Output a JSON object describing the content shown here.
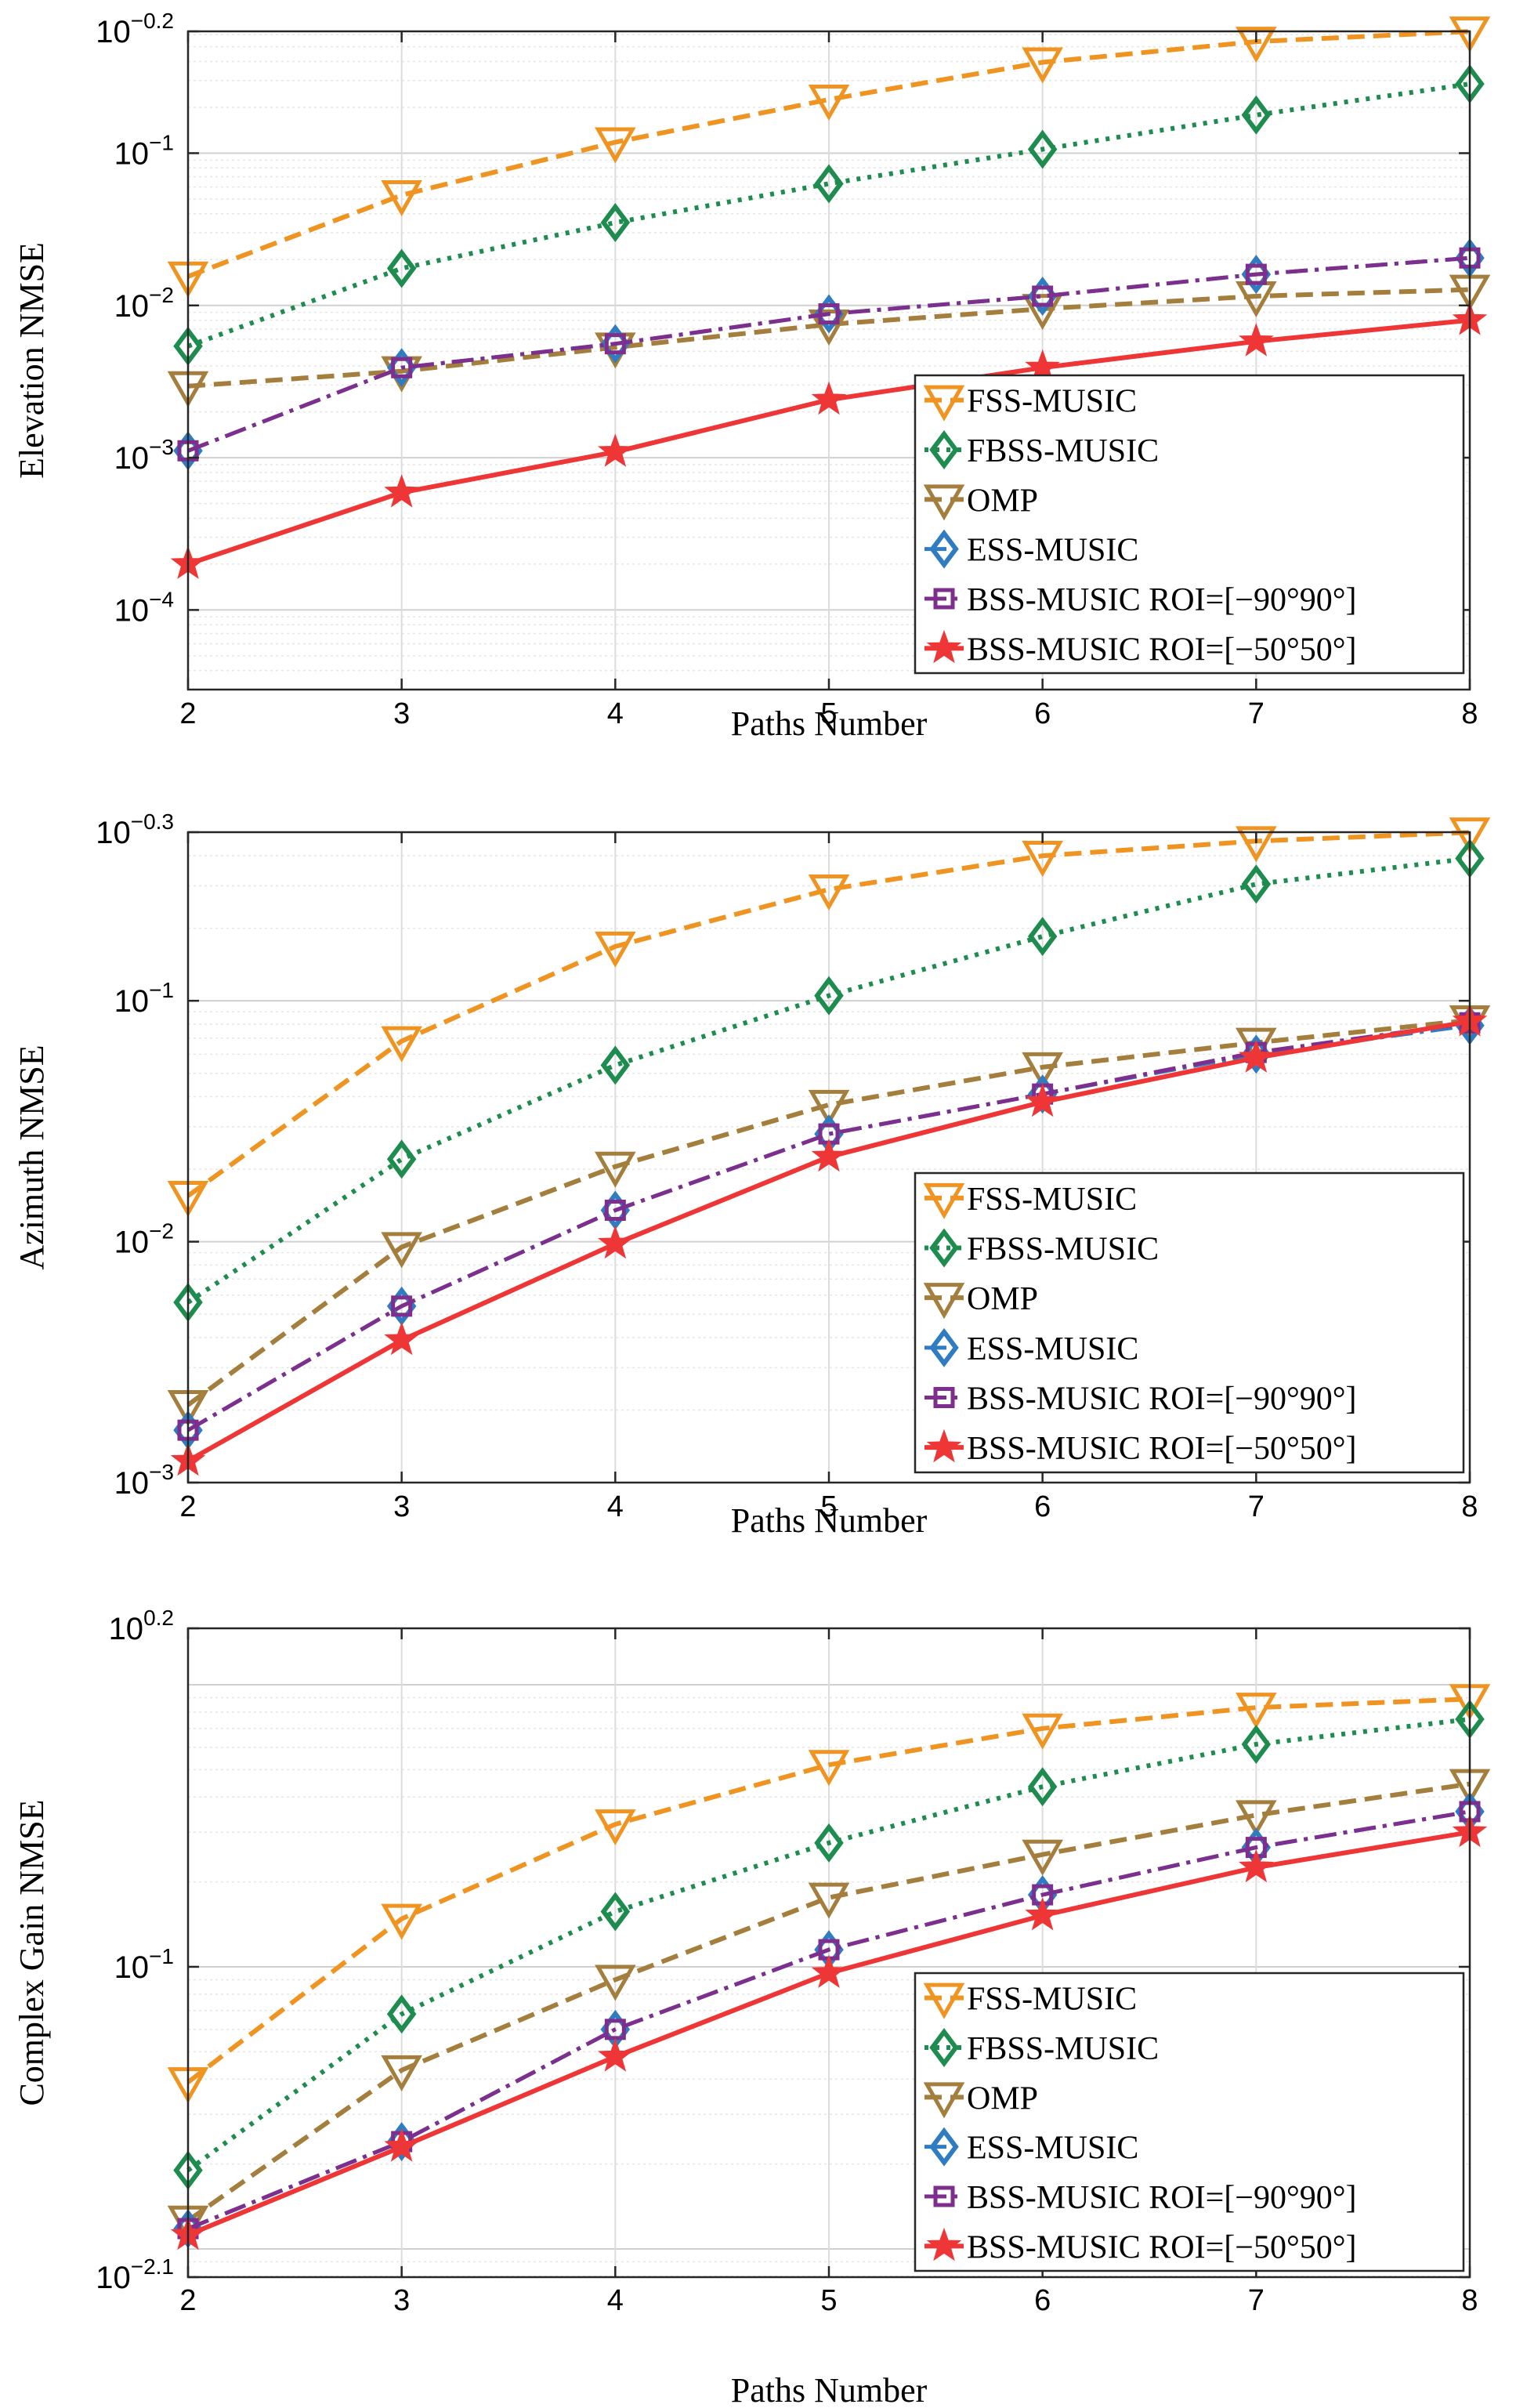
{
  "chart_data": [
    {
      "type": "line",
      "title": "",
      "xlabel": "Paths Number",
      "ylabel": "Elevation NMSE",
      "yscale": "log",
      "xlim": [
        2,
        8
      ],
      "ylim": [
        3e-05,
        0.631
      ],
      "x_ticks": [
        2,
        3,
        4,
        5,
        6,
        7,
        8
      ],
      "y_ticks": [
        {
          "value": 0.0001,
          "base": "10",
          "exp": "−4"
        },
        {
          "value": 0.001,
          "base": "10",
          "exp": "−3"
        },
        {
          "value": 0.01,
          "base": "10",
          "exp": "−2"
        },
        {
          "value": 0.1,
          "base": "10",
          "exp": "−1"
        },
        {
          "value": 0.631,
          "base": "10",
          "exp": "−0.2"
        }
      ],
      "grid": true,
      "legend_position": "bottom-right",
      "x": [
        2,
        3,
        4,
        5,
        6,
        7,
        8
      ],
      "series": [
        {
          "name": "FSS-MUSIC",
          "color": "#EF9420",
          "values": [
            0.0155,
            0.053,
            0.118,
            0.225,
            0.395,
            0.54,
            0.63
          ]
        },
        {
          "name": "FBSS-MUSIC",
          "color": "#1E8C4E",
          "values": [
            0.0054,
            0.0175,
            0.035,
            0.063,
            0.106,
            0.178,
            0.285
          ]
        },
        {
          "name": "OMP",
          "color": "#A47E3C",
          "values": [
            0.00295,
            0.0037,
            0.0053,
            0.0075,
            0.0095,
            0.0115,
            0.0127
          ]
        },
        {
          "name": "ESS-MUSIC",
          "color": "#2F7CC2",
          "values": [
            0.00111,
            0.0039,
            0.0056,
            0.0088,
            0.0115,
            0.016,
            0.0205
          ]
        },
        {
          "name": "BSS-MUSIC ROI=[−90°90°]",
          "color": "#7E2F8E",
          "values": [
            0.00111,
            0.0039,
            0.0056,
            0.0088,
            0.0115,
            0.016,
            0.0205
          ]
        },
        {
          "name": "BSS-MUSIC ROI=[−50°50°]",
          "color": "#EE3636",
          "values": [
            0.0002,
            0.00059,
            0.00109,
            0.0024,
            0.0039,
            0.0058,
            0.008
          ]
        }
      ]
    },
    {
      "type": "line",
      "title": "",
      "xlabel": "Paths Number",
      "ylabel": "Azimuth NMSE",
      "yscale": "log",
      "xlim": [
        2,
        8
      ],
      "ylim": [
        0.001,
        0.501
      ],
      "x_ticks": [
        2,
        3,
        4,
        5,
        6,
        7,
        8
      ],
      "y_ticks": [
        {
          "value": 0.001,
          "base": "10",
          "exp": "−3"
        },
        {
          "value": 0.01,
          "base": "10",
          "exp": "−2"
        },
        {
          "value": 0.1,
          "base": "10",
          "exp": "−1"
        },
        {
          "value": 0.501,
          "base": "10",
          "exp": "−0.3"
        }
      ],
      "grid": true,
      "legend_position": "bottom-right",
      "x": [
        2,
        3,
        4,
        5,
        6,
        7,
        8
      ],
      "series": [
        {
          "name": "FSS-MUSIC",
          "color": "#EF9420",
          "values": [
            0.0155,
            0.068,
            0.168,
            0.29,
            0.4,
            0.46,
            0.5
          ]
        },
        {
          "name": "FBSS-MUSIC",
          "color": "#1E8C4E",
          "values": [
            0.0056,
            0.022,
            0.054,
            0.105,
            0.185,
            0.305,
            0.39
          ]
        },
        {
          "name": "OMP",
          "color": "#A47E3C",
          "values": [
            0.0021,
            0.0095,
            0.0205,
            0.037,
            0.053,
            0.067,
            0.083
          ]
        },
        {
          "name": "ESS-MUSIC",
          "color": "#2F7CC2",
          "values": [
            0.00165,
            0.0054,
            0.0135,
            0.028,
            0.041,
            0.06,
            0.079
          ]
        },
        {
          "name": "BSS-MUSIC ROI=[−90°90°]",
          "color": "#7E2F8E",
          "values": [
            0.00165,
            0.0054,
            0.0135,
            0.028,
            0.041,
            0.061,
            0.081
          ]
        },
        {
          "name": "BSS-MUSIC ROI=[−50°50°]",
          "color": "#EE3636",
          "values": [
            0.00123,
            0.0039,
            0.0098,
            0.0225,
            0.038,
            0.058,
            0.082
          ]
        }
      ]
    },
    {
      "type": "line",
      "title": "",
      "xlabel": "Paths Number",
      "ylabel": "Complex Gain NMSE",
      "yscale": "log",
      "xlim": [
        2,
        8
      ],
      "ylim": [
        0.00794,
        1.585
      ],
      "x_ticks": [
        2,
        3,
        4,
        5,
        6,
        7,
        8
      ],
      "y_ticks": [
        {
          "value": 0.00794,
          "base": "10",
          "exp": "−2.1"
        },
        {
          "value": 0.1,
          "base": "10",
          "exp": "−1"
        },
        {
          "value": 1.585,
          "base": "10",
          "exp": "0.2"
        }
      ],
      "grid": true,
      "legend_position": "bottom-right",
      "x": [
        2,
        3,
        4,
        5,
        6,
        7,
        8
      ],
      "series": [
        {
          "name": "FSS-MUSIC",
          "color": "#EF9420",
          "values": [
            0.039,
            0.148,
            0.32,
            0.52,
            0.7,
            0.83,
            0.89
          ]
        },
        {
          "name": "FBSS-MUSIC",
          "color": "#1E8C4E",
          "values": [
            0.019,
            0.068,
            0.157,
            0.275,
            0.435,
            0.615,
            0.755
          ]
        },
        {
          "name": "OMP",
          "color": "#A47E3C",
          "values": [
            0.0126,
            0.043,
            0.09,
            0.176,
            0.25,
            0.345,
            0.445
          ]
        },
        {
          "name": "ESS-MUSIC",
          "color": "#2F7CC2",
          "values": [
            0.0118,
            0.024,
            0.06,
            0.115,
            0.18,
            0.265,
            0.355
          ]
        },
        {
          "name": "BSS-MUSIC ROI=[−90°90°]",
          "color": "#7E2F8E",
          "values": [
            0.0118,
            0.024,
            0.06,
            0.115,
            0.18,
            0.265,
            0.355
          ]
        },
        {
          "name": "BSS-MUSIC ROI=[−50°50°]",
          "color": "#EE3636",
          "values": [
            0.0112,
            0.023,
            0.048,
            0.095,
            0.152,
            0.225,
            0.3
          ]
        }
      ]
    }
  ]
}
